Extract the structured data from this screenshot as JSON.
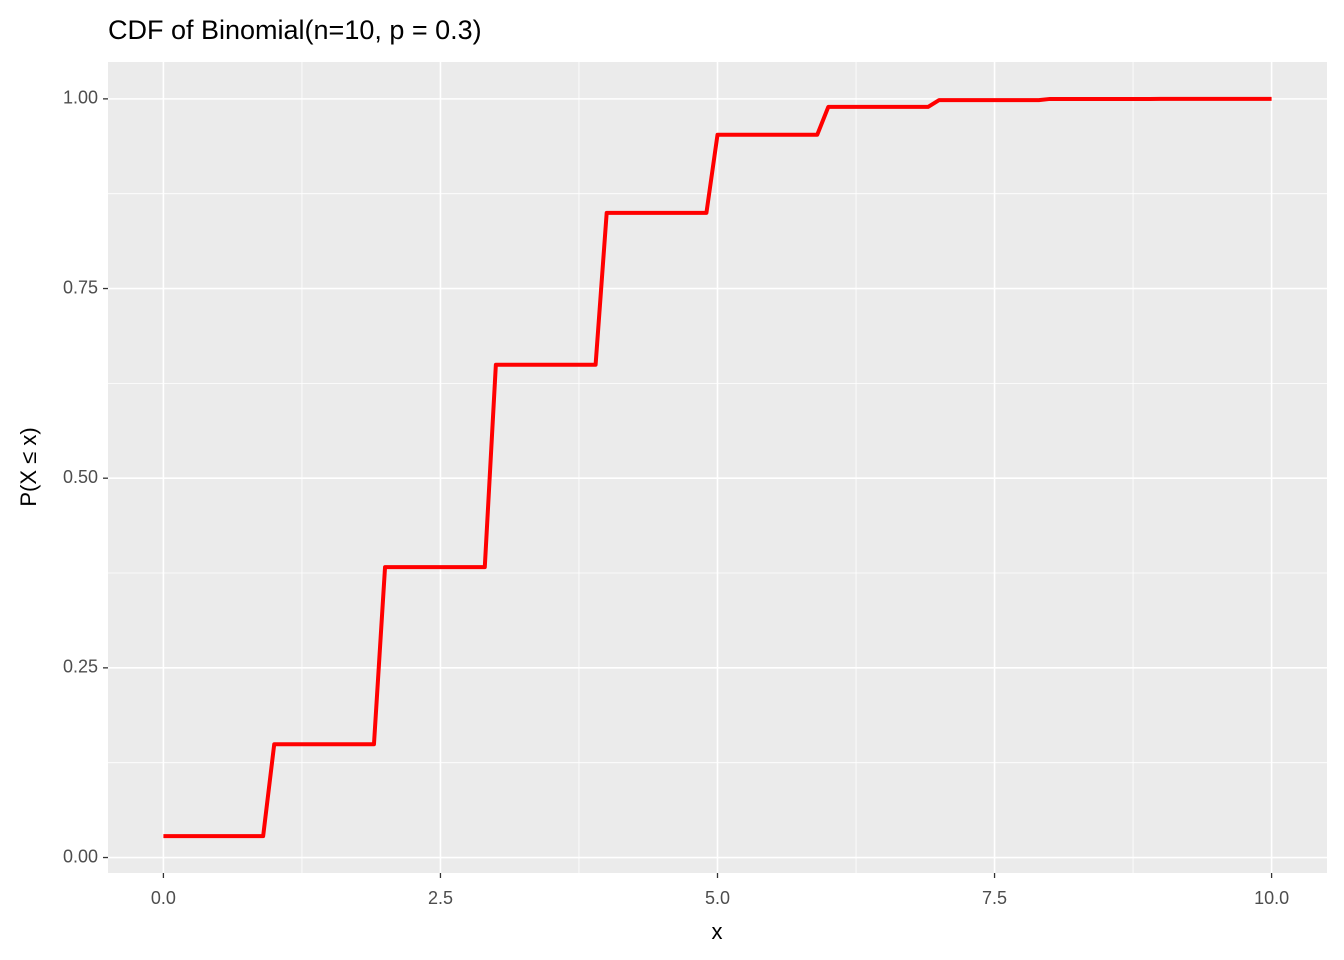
{
  "chart_data": {
    "type": "line",
    "title": "CDF of Binomial(n=10, p = 0.3)",
    "x_label": "x",
    "y_label": "P(X ≤ x)",
    "x": [
      0,
      0.9,
      1,
      1.9,
      2,
      2.9,
      3,
      3.9,
      4,
      4.9,
      5,
      5.9,
      6,
      6.9,
      7,
      7.9,
      8,
      8.9,
      9,
      9.9,
      10
    ],
    "series": [
      {
        "name": "CDF",
        "color": "#ff0000",
        "values": [
          0.0282,
          0.0282,
          0.1493,
          0.1493,
          0.3828,
          0.3828,
          0.6496,
          0.6496,
          0.8497,
          0.8497,
          0.9527,
          0.9527,
          0.9894,
          0.9894,
          0.9984,
          0.9984,
          0.9999,
          0.9999,
          1.0,
          1.0,
          1.0
        ]
      }
    ],
    "xlim": [
      -0.5,
      10.5
    ],
    "ylim": [
      -0.0204,
      1.0486
    ],
    "xticks": [
      {
        "value": 0,
        "label": "0.0"
      },
      {
        "value": 2.5,
        "label": "2.5"
      },
      {
        "value": 5,
        "label": "5.0"
      },
      {
        "value": 7.5,
        "label": "7.5"
      },
      {
        "value": 10,
        "label": "10.0"
      }
    ],
    "yticks": [
      {
        "value": 0,
        "label": "0.00"
      },
      {
        "value": 0.25,
        "label": "0.25"
      },
      {
        "value": 0.5,
        "label": "0.50"
      },
      {
        "value": 0.75,
        "label": "0.75"
      },
      {
        "value": 1,
        "label": "1.00"
      }
    ],
    "grid": true
  }
}
